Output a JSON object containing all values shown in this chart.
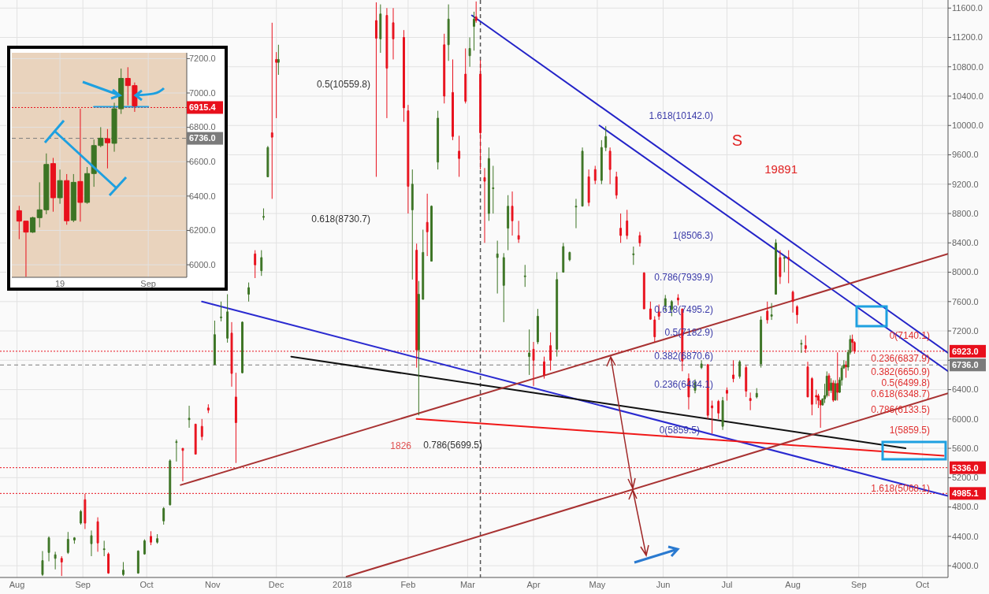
{
  "chart_data": [
    {
      "type": "candlestick",
      "xlim": [
        "2017-07-24",
        "2018-10-13"
      ],
      "ylim": [
        3840,
        11710
      ],
      "grid": true,
      "xticks": [
        {
          "value": "2017-08-01",
          "label": "Aug"
        },
        {
          "value": "2017-09-01",
          "label": "Sep"
        },
        {
          "value": "2017-10-01",
          "label": "Oct"
        },
        {
          "value": "2017-11-01",
          "label": "Nov"
        },
        {
          "value": "2017-12-01",
          "label": "Dec"
        },
        {
          "value": "2018-01-01",
          "label": "2018"
        },
        {
          "value": "2018-02-01",
          "label": "Feb"
        },
        {
          "value": "2018-03-01",
          "label": "Mar"
        },
        {
          "value": "2018-04-01",
          "label": "Apr"
        },
        {
          "value": "2018-05-01",
          "label": "May"
        },
        {
          "value": "2018-06-01",
          "label": "Jun"
        },
        {
          "value": "2018-07-01",
          "label": "Jul"
        },
        {
          "value": "2018-08-01",
          "label": "Aug"
        },
        {
          "value": "2018-09-01",
          "label": "Sep"
        },
        {
          "value": "2018-10-01",
          "label": "Oct"
        }
      ],
      "yticks": [
        {
          "value": 4000,
          "label": "4000.0"
        },
        {
          "value": 4400,
          "label": "4400.0"
        },
        {
          "value": 4800,
          "label": "4800.0"
        },
        {
          "value": 5200,
          "label": "5200.0"
        },
        {
          "value": 5600,
          "label": "5600.0"
        },
        {
          "value": 6000,
          "label": "6000.0"
        },
        {
          "value": 6400,
          "label": "6400.0"
        },
        {
          "value": 6800,
          "label": null
        },
        {
          "value": 7200,
          "label": "7200.0"
        },
        {
          "value": 7600,
          "label": "7600.0"
        },
        {
          "value": 8000,
          "label": "8000.0"
        },
        {
          "value": 8400,
          "label": "8400.0"
        },
        {
          "value": 8800,
          "label": "8800.0"
        },
        {
          "value": 9200,
          "label": "9200.0"
        },
        {
          "value": 9600,
          "label": "9600.0"
        },
        {
          "value": 10000,
          "label": "10000.0"
        },
        {
          "value": 10400,
          "label": "10400.0"
        },
        {
          "value": 10800,
          "label": "10800.0"
        },
        {
          "value": 11200,
          "label": "11200.0"
        },
        {
          "value": 11600,
          "label": "11600.0"
        }
      ],
      "x": [
        "2017-08-13",
        "2017-08-16",
        "2017-08-19",
        "2017-08-22",
        "2017-08-25",
        "2017-08-28",
        "2017-08-31",
        "2017-09-02",
        "2017-09-05",
        "2017-09-08",
        "2017-09-11",
        "2017-09-13",
        "2017-09-20",
        "2017-09-27",
        "2017-09-30",
        "2017-10-03",
        "2017-10-06",
        "2017-10-09",
        "2017-10-12",
        "2017-10-15",
        "2017-10-18",
        "2017-10-21",
        "2017-10-24",
        "2017-10-27",
        "2017-10-30",
        "2017-11-02",
        "2017-11-05",
        "2017-11-08",
        "2017-11-10",
        "2017-11-12",
        "2017-11-15",
        "2017-11-18",
        "2017-11-21",
        "2017-11-24",
        "2017-11-25",
        "2017-11-27",
        "2017-11-29",
        "2017-12-01",
        "2017-12-02",
        "2018-01-17",
        "2018-01-19",
        "2018-01-22",
        "2018-01-25",
        "2018-01-30",
        "2018-02-01",
        "2018-02-03",
        "2018-02-05",
        "2018-02-06",
        "2018-02-08",
        "2018-02-10",
        "2018-02-12",
        "2018-02-15",
        "2018-02-18",
        "2018-02-20",
        "2018-02-22",
        "2018-02-25",
        "2018-02-28",
        "2018-03-02",
        "2018-03-04",
        "2018-03-05",
        "2018-03-07",
        "2018-03-09",
        "2018-03-11",
        "2018-03-13",
        "2018-03-15",
        "2018-03-18",
        "2018-03-20",
        "2018-03-22",
        "2018-03-25",
        "2018-03-28",
        "2018-03-30",
        "2018-04-01",
        "2018-04-03",
        "2018-04-06",
        "2018-04-09",
        "2018-04-12",
        "2018-04-15",
        "2018-04-18",
        "2018-04-21",
        "2018-04-24",
        "2018-04-27",
        "2018-04-30",
        "2018-05-03",
        "2018-05-05",
        "2018-05-07",
        "2018-05-10",
        "2018-05-12",
        "2018-05-15",
        "2018-05-18",
        "2018-05-21",
        "2018-05-23",
        "2018-05-26",
        "2018-05-28",
        "2018-05-30",
        "2018-06-02",
        "2018-06-05",
        "2018-06-08",
        "2018-06-10",
        "2018-06-13",
        "2018-06-16",
        "2018-06-19",
        "2018-06-22",
        "2018-06-24",
        "2018-06-27",
        "2018-06-29",
        "2018-07-01",
        "2018-07-04",
        "2018-07-07",
        "2018-07-10",
        "2018-07-12",
        "2018-07-15",
        "2018-07-17",
        "2018-07-20",
        "2018-07-22",
        "2018-07-24",
        "2018-07-26",
        "2018-07-28",
        "2018-07-30",
        "2018-08-01",
        "2018-08-03",
        "2018-08-05",
        "2018-08-07",
        "2018-08-08",
        "2018-08-10",
        "2018-08-12",
        "2018-08-13",
        "2018-08-14",
        "2018-08-15",
        "2018-08-16",
        "2018-08-17",
        "2018-08-18",
        "2018-08-19",
        "2018-08-20",
        "2018-08-21",
        "2018-08-22",
        "2018-08-23",
        "2018-08-24",
        "2018-08-25",
        "2018-08-26",
        "2018-08-27",
        "2018-08-28",
        "2018-08-29",
        "2018-08-30"
      ],
      "ohlc": [
        [
          3880,
          4200,
          3860,
          4070
        ],
        [
          4180,
          4400,
          4060,
          4380
        ],
        [
          4100,
          4190,
          3950,
          4150
        ],
        [
          4100,
          4130,
          3860,
          4050
        ],
        [
          4180,
          4460,
          4160,
          4360
        ],
        [
          4350,
          4390,
          4300,
          4380
        ],
        [
          4580,
          4760,
          4560,
          4740
        ],
        [
          4900,
          4980,
          4500,
          4580
        ],
        [
          4300,
          4480,
          4130,
          4410
        ],
        [
          4600,
          4660,
          4190,
          4310
        ],
        [
          4230,
          4340,
          4130,
          4230
        ],
        [
          4160,
          4180,
          3890,
          3900
        ],
        [
          3880,
          4050,
          3860,
          3940
        ],
        [
          3900,
          4210,
          3890,
          4200
        ],
        [
          4160,
          4360,
          4150,
          4340
        ],
        [
          4400,
          4470,
          4280,
          4320
        ],
        [
          4320,
          4430,
          4300,
          4370
        ],
        [
          4610,
          4800,
          4560,
          4780
        ],
        [
          4830,
          5450,
          4820,
          5430
        ],
        [
          5690,
          5720,
          5420,
          5690
        ],
        [
          5600,
          5600,
          5150,
          5570
        ],
        [
          5990,
          6180,
          5880,
          6010
        ],
        [
          5930,
          5930,
          5520,
          5520
        ],
        [
          5900,
          6000,
          5710,
          5760
        ],
        [
          6150,
          6200,
          6080,
          6120
        ],
        [
          6740,
          7340,
          6740,
          7150
        ],
        [
          7380,
          7600,
          7330,
          7390
        ],
        [
          7100,
          7700,
          7040,
          7460
        ],
        [
          7170,
          7320,
          6440,
          6620
        ],
        [
          6300,
          6630,
          5400,
          5950
        ],
        [
          6630,
          7330,
          6620,
          7320
        ],
        [
          7700,
          7860,
          7600,
          7790
        ],
        [
          8250,
          8300,
          7920,
          8100
        ],
        [
          8020,
          8300,
          7950,
          8200
        ],
        [
          8750,
          8870,
          8710,
          8760
        ],
        [
          9300,
          9720,
          9300,
          9700
        ],
        [
          9900,
          11400,
          9000,
          9840
        ],
        [
          10900,
          11000,
          10100,
          10860
        ],
        [
          10860,
          11100,
          10690,
          10900
        ],
        [
          11430,
          11678,
          9300,
          11188
        ],
        [
          11180,
          11650,
          10990,
          11520
        ],
        [
          11500,
          11600,
          10100,
          10780
        ],
        [
          11400,
          11600,
          10900,
          11180
        ],
        [
          11200,
          11300,
          10050,
          10240
        ],
        [
          10200,
          10280,
          8800,
          9170
        ],
        [
          8850,
          9400,
          7900,
          9200
        ],
        [
          8300,
          8390,
          6700,
          6940
        ],
        [
          6940,
          7880,
          6050,
          7700
        ],
        [
          7630,
          8580,
          7630,
          8270
        ],
        [
          8680,
          9070,
          8220,
          8550
        ],
        [
          8150,
          8910,
          8150,
          8900
        ],
        [
          9500,
          10200,
          9400,
          10100
        ],
        [
          11100,
          11250,
          10300,
          10400
        ],
        [
          11100,
          11650,
          10880,
          11450
        ],
        [
          10450,
          10900,
          9800,
          9850
        ],
        [
          9650,
          9860,
          9300,
          9550
        ],
        [
          10700,
          11050,
          10300,
          10330
        ],
        [
          10950,
          11200,
          10800,
          11050
        ],
        [
          11350,
          11550,
          11020,
          11450
        ],
        [
          11480,
          11690,
          11400,
          11430
        ],
        [
          10700,
          10890,
          9400,
          9900
        ],
        [
          9290,
          9420,
          8400,
          9240
        ],
        [
          8800,
          9700,
          8700,
          9550
        ],
        [
          9150,
          9450,
          8800,
          9150
        ],
        [
          8200,
          8430,
          7710,
          8250
        ],
        [
          7820,
          8260,
          7320,
          8200
        ],
        [
          8600,
          9050,
          8300,
          8900
        ],
        [
          8900,
          9100,
          8500,
          8700
        ],
        [
          8500,
          8700,
          8400,
          8450
        ],
        [
          7940,
          8100,
          7800,
          7950
        ],
        [
          6850,
          7220,
          6600,
          6900
        ],
        [
          6950,
          7050,
          6450,
          6800
        ],
        [
          7050,
          7500,
          7020,
          7400
        ],
        [
          6780,
          6850,
          6550,
          6600
        ],
        [
          7000,
          7180,
          6660,
          6800
        ],
        [
          6950,
          8000,
          6850,
          7900
        ],
        [
          8000,
          8400,
          8000,
          8350
        ],
        [
          8170,
          8280,
          8150,
          8270
        ],
        [
          8900,
          9000,
          8600,
          8900
        ],
        [
          8900,
          9700,
          8900,
          9650
        ],
        [
          9300,
          9400,
          8900,
          8950
        ],
        [
          9400,
          9450,
          9200,
          9250
        ],
        [
          9250,
          9800,
          9200,
          9700
        ],
        [
          9700,
          9990,
          9650,
          9850
        ],
        [
          9650,
          9700,
          9200,
          9400
        ],
        [
          9300,
          9370,
          9000,
          9050
        ],
        [
          8600,
          8800,
          8400,
          8500
        ],
        [
          8700,
          8850,
          8450,
          8500
        ],
        [
          8250,
          8350,
          8100,
          8250
        ],
        [
          8500,
          8550,
          8350,
          8400
        ],
        [
          7990,
          8000,
          7500,
          7500
        ],
        [
          7500,
          7600,
          7350,
          7360
        ],
        [
          7350,
          7400,
          7050,
          7120
        ],
        [
          7460,
          7560,
          7350,
          7400
        ],
        [
          7540,
          7690,
          7470,
          7640
        ],
        [
          7490,
          7620,
          7400,
          7600
        ],
        [
          7650,
          7700,
          7550,
          7620
        ],
        [
          7500,
          7500,
          6650,
          6790
        ],
        [
          6550,
          6620,
          6130,
          6300
        ],
        [
          6390,
          6540,
          6350,
          6500
        ],
        [
          6700,
          6800,
          6680,
          6750
        ],
        [
          6740,
          6750,
          6000,
          6050
        ],
        [
          6180,
          6250,
          5800,
          6150
        ],
        [
          6240,
          6260,
          6000,
          6080
        ],
        [
          5900,
          6300,
          5850,
          6250
        ],
        [
          6390,
          6430,
          6250,
          6350
        ],
        [
          6600,
          6800,
          6500,
          6550
        ],
        [
          6580,
          6800,
          6550,
          6780
        ],
        [
          6700,
          6730,
          6300,
          6380
        ],
        [
          6280,
          6360,
          6120,
          6250
        ],
        [
          6300,
          6420,
          6280,
          6350
        ],
        [
          6750,
          7400,
          6700,
          7350
        ],
        [
          7470,
          7600,
          7300,
          7350
        ],
        [
          7400,
          7580,
          7350,
          7420
        ],
        [
          7700,
          8450,
          7700,
          8400
        ],
        [
          8200,
          8300,
          7840,
          7940
        ],
        [
          8200,
          8230,
          8000,
          8200
        ],
        [
          8200,
          8300,
          7850,
          8180
        ],
        [
          7730,
          7750,
          7450,
          7600
        ],
        [
          7530,
          7550,
          7300,
          7420
        ],
        [
          7030,
          7080,
          6900,
          7030
        ],
        [
          7000,
          7140,
          6900,
          6960
        ],
        [
          6710,
          6780,
          6300,
          6300
        ],
        [
          6550,
          6570,
          6050,
          6200
        ],
        [
          6320,
          6400,
          6200,
          6300
        ],
        [
          6315,
          6343,
          6149,
          6254
        ],
        [
          6254,
          6254,
          5880,
          6190
        ],
        [
          6190,
          6280,
          6185,
          6274
        ],
        [
          6274,
          6480,
          6218,
          6320
        ],
        [
          6320,
          6648,
          6294,
          6584
        ],
        [
          6589,
          6622,
          6309,
          6390
        ],
        [
          6390,
          6554,
          6355,
          6490
        ],
        [
          6490,
          6528,
          6233,
          6256
        ],
        [
          6259,
          6528,
          6248,
          6480
        ],
        [
          6485,
          6908,
          6251,
          6363
        ],
        [
          6363,
          6569,
          6355,
          6531
        ],
        [
          6531,
          6729,
          6454,
          6694
        ],
        [
          6694,
          6801,
          6684,
          6737
        ],
        [
          6734,
          6790,
          6561,
          6710
        ],
        [
          6707,
          6943,
          6658,
          6908
        ],
        [
          6908,
          7142,
          6878,
          7085
        ],
        [
          7085,
          7150,
          6928,
          7043
        ],
        [
          7043,
          7061,
          6890,
          6925
        ]
      ],
      "series": [
        {
          "type": "line",
          "color": "#2424c8",
          "x": [
            "2018-03-03",
            "2018-10-13"
          ],
          "values": [
            11500,
            6900
          ]
        },
        {
          "type": "line",
          "color": "#2424c8",
          "x": [
            "2018-05-02",
            "2018-10-13"
          ],
          "values": [
            10000,
            6650
          ]
        },
        {
          "type": "line",
          "color": "#2a2ad0",
          "x": [
            "2017-10-27",
            "2018-10-13"
          ],
          "values": [
            7600,
            4950
          ]
        },
        {
          "type": "line",
          "color": "#111111",
          "x": [
            "2017-12-08",
            "2018-09-23"
          ],
          "values": [
            6850,
            5600
          ]
        },
        {
          "type": "line",
          "color": "#f01818",
          "x": [
            "2018-02-05",
            "2018-10-11"
          ],
          "values": [
            6000,
            5500
          ]
        },
        {
          "type": "line",
          "color": "#a83232",
          "x": [
            "2017-10-17",
            "2018-10-13"
          ],
          "values": [
            5100,
            8250
          ]
        },
        {
          "type": "line",
          "color": "#a83232",
          "x": [
            "2018-01-03",
            "2018-10-13"
          ],
          "values": [
            3850,
            6350
          ]
        }
      ],
      "ref_lines": [
        {
          "axis": "y",
          "value": 6923.0,
          "label": "6923.0",
          "color": "#e8101c",
          "line_style": "dotted"
        },
        {
          "axis": "y",
          "value": 6736.0,
          "label": "6736.0",
          "color": "#7b7b7b",
          "line_style": "dashed"
        },
        {
          "axis": "y",
          "value": 5336.0,
          "label": "5336.0",
          "color": "#e8101c",
          "line_style": "dotted"
        },
        {
          "axis": "y",
          "value": 4985.1,
          "label": "4985.1",
          "color": "#e8101c",
          "line_style": "dotted"
        },
        {
          "axis": "x",
          "value": "2018-03-07",
          "color": "#555555",
          "line_style": "dashed"
        }
      ],
      "annotations": [
        "0.5(10559.8)",
        "0.618(8730.7)",
        "0.786(5699.5)",
        "1826",
        "1.618(10142.0)",
        "1(8506.3)",
        "0.786(7939.9)",
        "0.618(7495.2)",
        "0.5(7182.9)",
        "0.382(6870.6)",
        "0.236(6484.1)",
        "0(5859.5)",
        "0(7140.1)",
        "0.236(6837.9)",
        "0.382(6650.9)",
        "0.5(6499.8)",
        "0.618(6348.7)",
        "0.786(6133.5)",
        "1(5859.5)",
        "1.618(5068.1)",
        "S",
        "19891"
      ]
    },
    {
      "type": "candlestick",
      "xlim": [
        "2018-08-11T22:00",
        "2018-09-06T16:00"
      ],
      "ylim": [
        5927,
        7234
      ],
      "grid": true,
      "xticks": [
        {
          "value": "2018-08-19",
          "label": "19"
        },
        {
          "value": "2018-09-01",
          "label": "Sep"
        }
      ],
      "yticks": [
        {
          "value": 6000,
          "label": "6000.0"
        },
        {
          "value": 6200,
          "label": "6200.0"
        },
        {
          "value": 6400,
          "label": "6400.0"
        },
        {
          "value": 6600,
          "label": "6600.0"
        },
        {
          "value": 6800,
          "label": "6800.0"
        },
        {
          "value": 7000,
          "label": "7000.0"
        },
        {
          "value": 7200,
          "label": "7200.0"
        }
      ],
      "x": [
        "2018-08-13",
        "2018-08-14",
        "2018-08-15",
        "2018-08-16",
        "2018-08-17",
        "2018-08-18",
        "2018-08-19",
        "2018-08-20",
        "2018-08-21",
        "2018-08-22",
        "2018-08-23",
        "2018-08-24",
        "2018-08-25",
        "2018-08-26",
        "2018-08-27",
        "2018-08-28",
        "2018-08-29",
        "2018-08-30"
      ],
      "series": [
        {
          "type": "line",
          "color": "#1ea0e0",
          "x": [
            "2018-08-24",
            "2018-09-01"
          ],
          "values": [
            6920,
            6920
          ]
        }
      ],
      "ohlc": [
        [
          6315,
          6343,
          6149,
          6254
        ],
        [
          6254,
          6254,
          5930,
          6190
        ],
        [
          6190,
          6280,
          6185,
          6274
        ],
        [
          6274,
          6480,
          6218,
          6320
        ],
        [
          6320,
          6648,
          6294,
          6584
        ],
        [
          6589,
          6622,
          6309,
          6390
        ],
        [
          6390,
          6554,
          6355,
          6490
        ],
        [
          6490,
          6528,
          6233,
          6256
        ],
        [
          6259,
          6528,
          6248,
          6480
        ],
        [
          6485,
          6908,
          6251,
          6363
        ],
        [
          6363,
          6569,
          6355,
          6531
        ],
        [
          6531,
          6729,
          6454,
          6694
        ],
        [
          6694,
          6801,
          6684,
          6737
        ],
        [
          6734,
          6790,
          6561,
          6710
        ],
        [
          6707,
          6943,
          6658,
          6908
        ],
        [
          6908,
          7142,
          6878,
          7085
        ],
        [
          7085,
          7150,
          6928,
          7043
        ],
        [
          7043,
          7061,
          6890,
          6925
        ]
      ],
      "ref_lines": [
        {
          "axis": "y",
          "value": 6915.4,
          "label": "6915.4",
          "color": "#e8101c",
          "line_style": "dotted"
        },
        {
          "axis": "y",
          "value": 6736.0,
          "label": "6736.0",
          "color": "#7b7b7b",
          "line_style": "dashed"
        }
      ]
    }
  ]
}
